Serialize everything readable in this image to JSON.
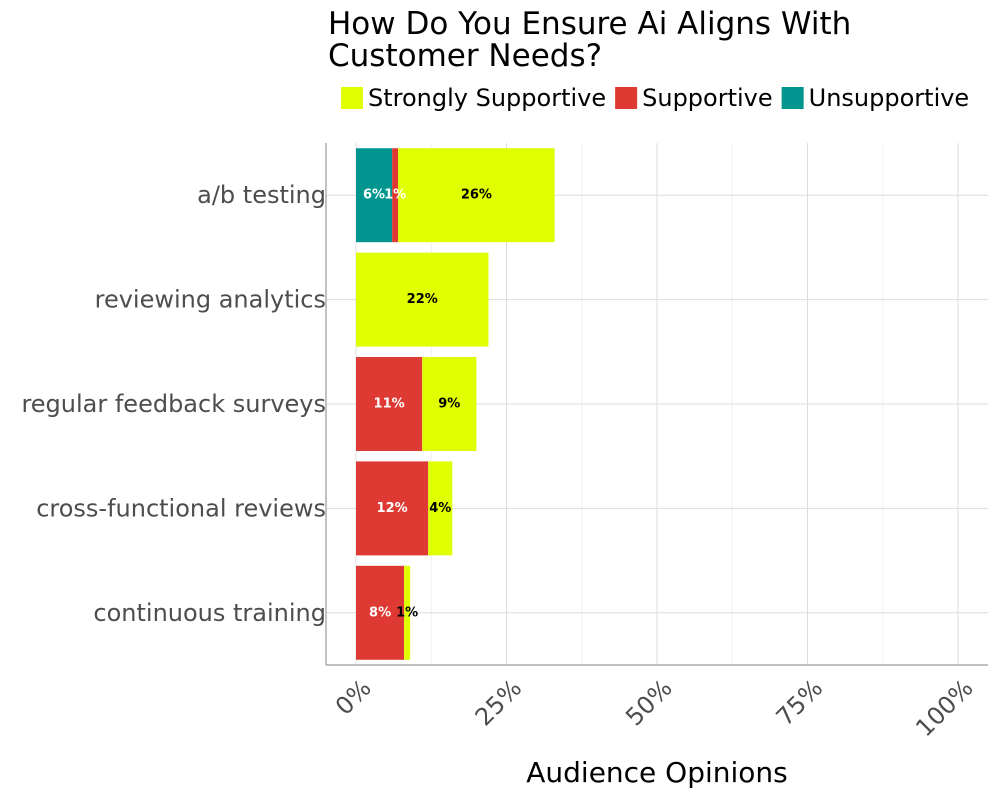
{
  "chart_data": {
    "type": "bar",
    "orientation": "horizontal",
    "stacked": true,
    "title_lines": [
      "How Do You Ensure Ai Aligns With",
      "Customer Needs?"
    ],
    "xlabel": "Audience Opinions",
    "ylabel": "",
    "xlim": [
      0,
      100
    ],
    "x_ticks": [
      0,
      25,
      50,
      75,
      100
    ],
    "x_tick_labels": [
      "0%",
      "25%",
      "50%",
      "75%",
      "100%"
    ],
    "grid": true,
    "legend_position": "top",
    "categories": [
      "a/b testing",
      "reviewing analytics",
      "regular feedback surveys",
      "cross-functional reviews",
      "continuous training"
    ],
    "series": [
      {
        "name": "Unsupportive",
        "color": "#00968f",
        "label_color": "#ffffff",
        "values": [
          6,
          0,
          0,
          0,
          0
        ]
      },
      {
        "name": "Supportive",
        "color": "#de3a33",
        "label_color": "#ffffff",
        "values": [
          1,
          0,
          11,
          12,
          8
        ]
      },
      {
        "name": "Strongly Supportive",
        "color": "#e0ff00",
        "label_color": "#000000",
        "values": [
          26,
          22,
          9,
          4,
          1
        ]
      }
    ],
    "legend_order": [
      "Strongly Supportive",
      "Supportive",
      "Unsupportive"
    ]
  }
}
